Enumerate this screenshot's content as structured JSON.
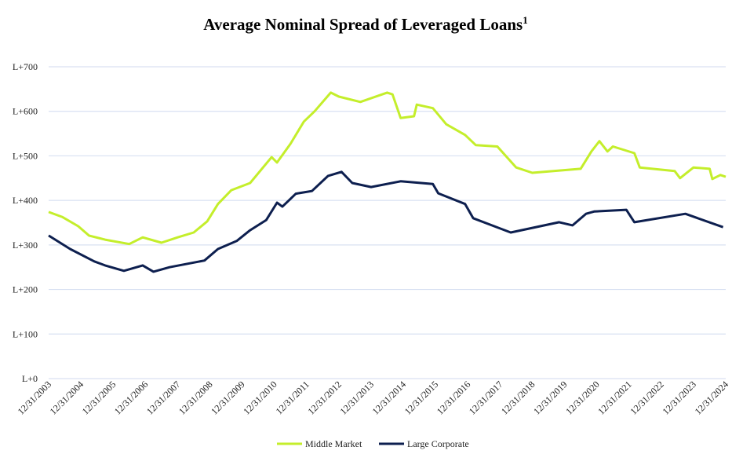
{
  "chart_data": {
    "type": "line",
    "title": "Average Nominal Spread of Leveraged Loans",
    "title_superscript": "1",
    "xlabel": "",
    "ylabel": "",
    "ylim": [
      0,
      700
    ],
    "y_ticks": [
      0,
      100,
      200,
      300,
      400,
      500,
      600,
      700
    ],
    "y_tick_labels": [
      "L+0",
      "L+100",
      "L+200",
      "L+300",
      "L+400",
      "L+500",
      "L+600",
      "L+700"
    ],
    "x_tick_labels": [
      "12/31/2003",
      "12/31/2004",
      "12/31/2005",
      "12/31/2006",
      "12/31/2007",
      "12/31/2008",
      "12/31/2009",
      "12/31/2010",
      "12/31/2011",
      "12/31/2012",
      "12/31/2013",
      "12/31/2014",
      "12/31/2015",
      "12/31/2016",
      "12/31/2017",
      "12/31/2018",
      "12/31/2019",
      "12/31/2020",
      "12/31/2021",
      "12/31/2022",
      "12/31/2023",
      "12/31/2024"
    ],
    "grid": "horizontal",
    "legend_placement": "bottom",
    "series": [
      {
        "name": "Middle Market",
        "color": "#c4ee2b",
        "points": [
          [
            "2004-01",
            374
          ],
          [
            "2004-06",
            363
          ],
          [
            "2004-12",
            342
          ],
          [
            "2005-04",
            321
          ],
          [
            "2005-10",
            312
          ],
          [
            "2006-07",
            302
          ],
          [
            "2006-12",
            317
          ],
          [
            "2007-07",
            305
          ],
          [
            "2008-01",
            317
          ],
          [
            "2008-07",
            328
          ],
          [
            "2008-12",
            353
          ],
          [
            "2009-04",
            392
          ],
          [
            "2009-09",
            423
          ],
          [
            "2010-04",
            439
          ],
          [
            "2010-12",
            497
          ],
          [
            "2011-02",
            485
          ],
          [
            "2011-07",
            527
          ],
          [
            "2011-12",
            577
          ],
          [
            "2012-04",
            600
          ],
          [
            "2012-10",
            642
          ],
          [
            "2013-01",
            633
          ],
          [
            "2013-09",
            621
          ],
          [
            "2014-07",
            642
          ],
          [
            "2014-09",
            638
          ],
          [
            "2014-12",
            585
          ],
          [
            "2015-05",
            589
          ],
          [
            "2015-06",
            615
          ],
          [
            "2015-12",
            607
          ],
          [
            "2016-05",
            571
          ],
          [
            "2016-12",
            547
          ],
          [
            "2017-04",
            524
          ],
          [
            "2017-12",
            521
          ],
          [
            "2018-07",
            474
          ],
          [
            "2019-01",
            462
          ],
          [
            "2020-07",
            471
          ],
          [
            "2020-11",
            510
          ],
          [
            "2021-02",
            533
          ],
          [
            "2021-05",
            510
          ],
          [
            "2021-07",
            521
          ],
          [
            "2022-03",
            506
          ],
          [
            "2022-05",
            474
          ],
          [
            "2023-06",
            466
          ],
          [
            "2023-08",
            450
          ],
          [
            "2024-01",
            474
          ],
          [
            "2024-07",
            471
          ],
          [
            "2024-08",
            448
          ],
          [
            "2024-11",
            457
          ],
          [
            "2025-01",
            453
          ]
        ]
      },
      {
        "name": "Large Corporate",
        "color": "#0d1f4f",
        "points": [
          [
            "2004-01",
            321
          ],
          [
            "2004-09",
            291
          ],
          [
            "2005-06",
            263
          ],
          [
            "2005-10",
            254
          ],
          [
            "2006-05",
            242
          ],
          [
            "2006-12",
            254
          ],
          [
            "2007-04",
            240
          ],
          [
            "2007-10",
            250
          ],
          [
            "2008-11",
            265
          ],
          [
            "2009-04",
            291
          ],
          [
            "2009-11",
            309
          ],
          [
            "2010-04",
            333
          ],
          [
            "2010-10",
            356
          ],
          [
            "2011-02",
            395
          ],
          [
            "2011-04",
            386
          ],
          [
            "2011-09",
            415
          ],
          [
            "2012-03",
            421
          ],
          [
            "2012-09",
            455
          ],
          [
            "2013-02",
            464
          ],
          [
            "2013-06",
            439
          ],
          [
            "2014-01",
            430
          ],
          [
            "2014-12",
            443
          ],
          [
            "2015-12",
            437
          ],
          [
            "2016-02",
            416
          ],
          [
            "2016-12",
            392
          ],
          [
            "2017-03",
            360
          ],
          [
            "2018-05",
            328
          ],
          [
            "2019-11",
            351
          ],
          [
            "2020-04",
            344
          ],
          [
            "2020-09",
            370
          ],
          [
            "2020-12",
            375
          ],
          [
            "2021-12",
            379
          ],
          [
            "2022-03",
            351
          ],
          [
            "2023-10",
            370
          ],
          [
            "2024-12",
            340
          ]
        ]
      }
    ]
  }
}
